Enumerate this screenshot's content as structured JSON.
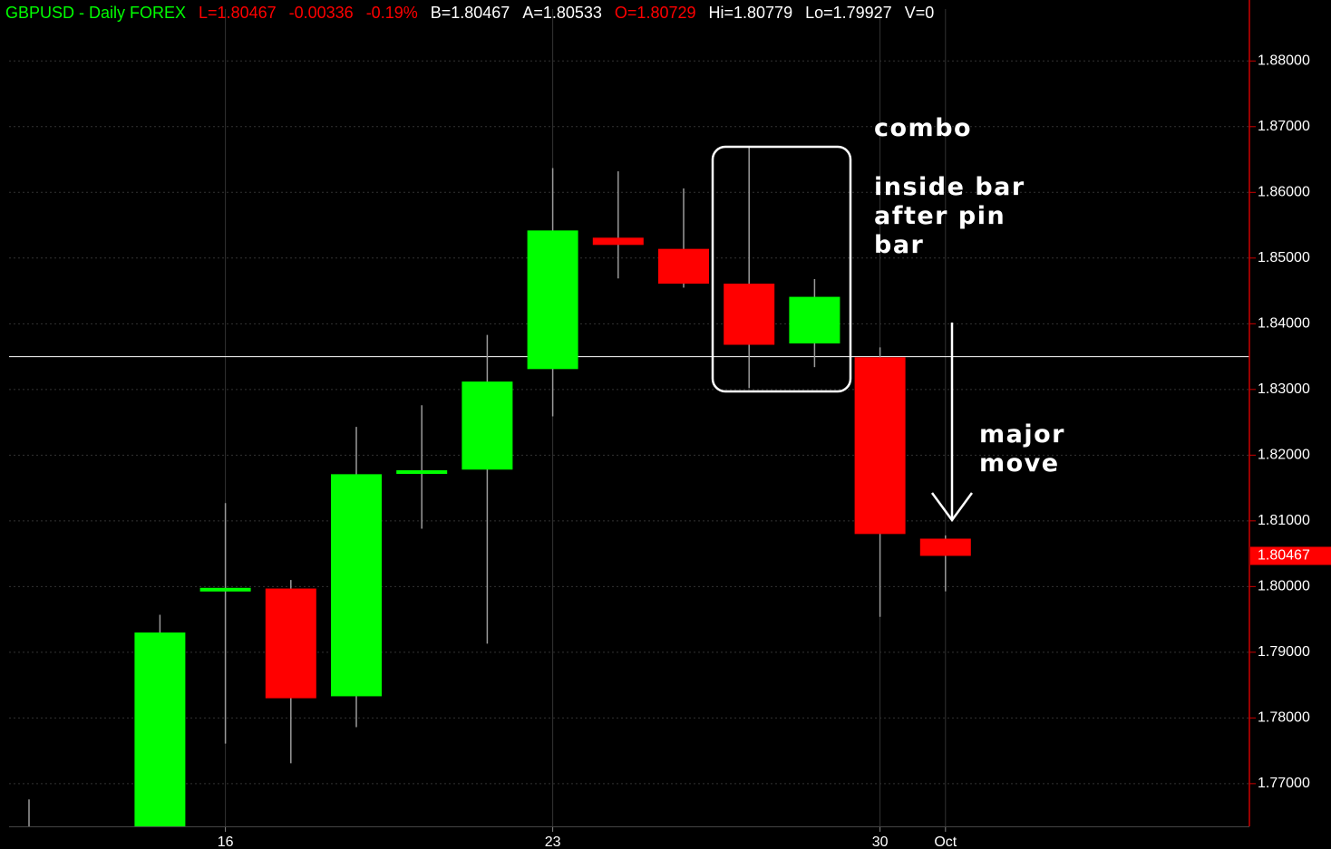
{
  "chart_data": {
    "type": "candlestick",
    "header": [
      {
        "text": "GBPUSD - Daily  FOREX",
        "color": "#00ff00"
      },
      {
        "text": "L=1.80467",
        "color": "#ff0000"
      },
      {
        "text": "-0.00336",
        "color": "#ff0000"
      },
      {
        "text": "-0.19%",
        "color": "#ff0000"
      },
      {
        "text": "B=1.80467",
        "color": "#ffffff"
      },
      {
        "text": "A=1.80533",
        "color": "#ffffff"
      },
      {
        "text": "O=1.80729",
        "color": "#ff0000"
      },
      {
        "text": "Hi=1.80779",
        "color": "#ffffff"
      },
      {
        "text": "Lo=1.79927",
        "color": "#ffffff"
      },
      {
        "text": "V=0",
        "color": "#ffffff"
      }
    ],
    "categories": [
      null,
      null,
      null,
      "16",
      null,
      null,
      null,
      null,
      "23",
      null,
      null,
      null,
      null,
      "30",
      "Oct"
    ],
    "open": [
      1.76,
      null,
      1.763,
      1.7997,
      1.7997,
      1.7833,
      1.8172,
      1.8178,
      1.8331,
      1.8531,
      1.8514,
      1.8461,
      1.837,
      1.8349,
      1.80729
    ],
    "high": [
      1.7676,
      null,
      1.7957,
      1.8127,
      1.801,
      1.8243,
      1.8276,
      1.8383,
      1.8637,
      1.8632,
      1.8606,
      1.8669,
      1.8468,
      1.8364,
      1.80779
    ],
    "low": [
      1.755,
      null,
      1.762,
      1.7761,
      1.7731,
      1.7786,
      1.8088,
      1.7913,
      1.8259,
      1.8469,
      1.8455,
      1.8302,
      1.8334,
      1.7954,
      1.79927
    ],
    "close": [
      1.758,
      null,
      1.793,
      1.7998,
      1.783,
      1.8171,
      1.8177,
      1.8312,
      1.8542,
      1.852,
      1.8461,
      1.8368,
      1.8441,
      1.808,
      1.80467
    ],
    "up_color": "#00ff00",
    "down_color": "#ff0000",
    "ylim": [
      1.7635,
      1.8879
    ],
    "yticks": [
      {
        "value": 1.77,
        "label": "1.77000"
      },
      {
        "value": 1.78,
        "label": "1.78000"
      },
      {
        "value": 1.79,
        "label": "1.79000"
      },
      {
        "value": 1.8,
        "label": "1.80000"
      },
      {
        "value": 1.81,
        "label": "1.81000"
      },
      {
        "value": 1.82,
        "label": "1.82000"
      },
      {
        "value": 1.83,
        "label": "1.83000"
      },
      {
        "value": 1.84,
        "label": "1.84000"
      },
      {
        "value": 1.85,
        "label": "1.85000"
      },
      {
        "value": 1.86,
        "label": "1.86000"
      },
      {
        "value": 1.87,
        "label": "1.87000"
      },
      {
        "value": 1.88,
        "label": "1.88000"
      }
    ],
    "crosshair": 1.835,
    "current_price": {
      "value": 1.80467,
      "label": "1.80467"
    },
    "grid": true,
    "annotations": [
      {
        "lines": [
          "combo"
        ]
      },
      {
        "lines": [
          "inside bar",
          "after pin",
          "bar"
        ]
      },
      {
        "lines": [
          "major",
          "move"
        ]
      }
    ]
  }
}
